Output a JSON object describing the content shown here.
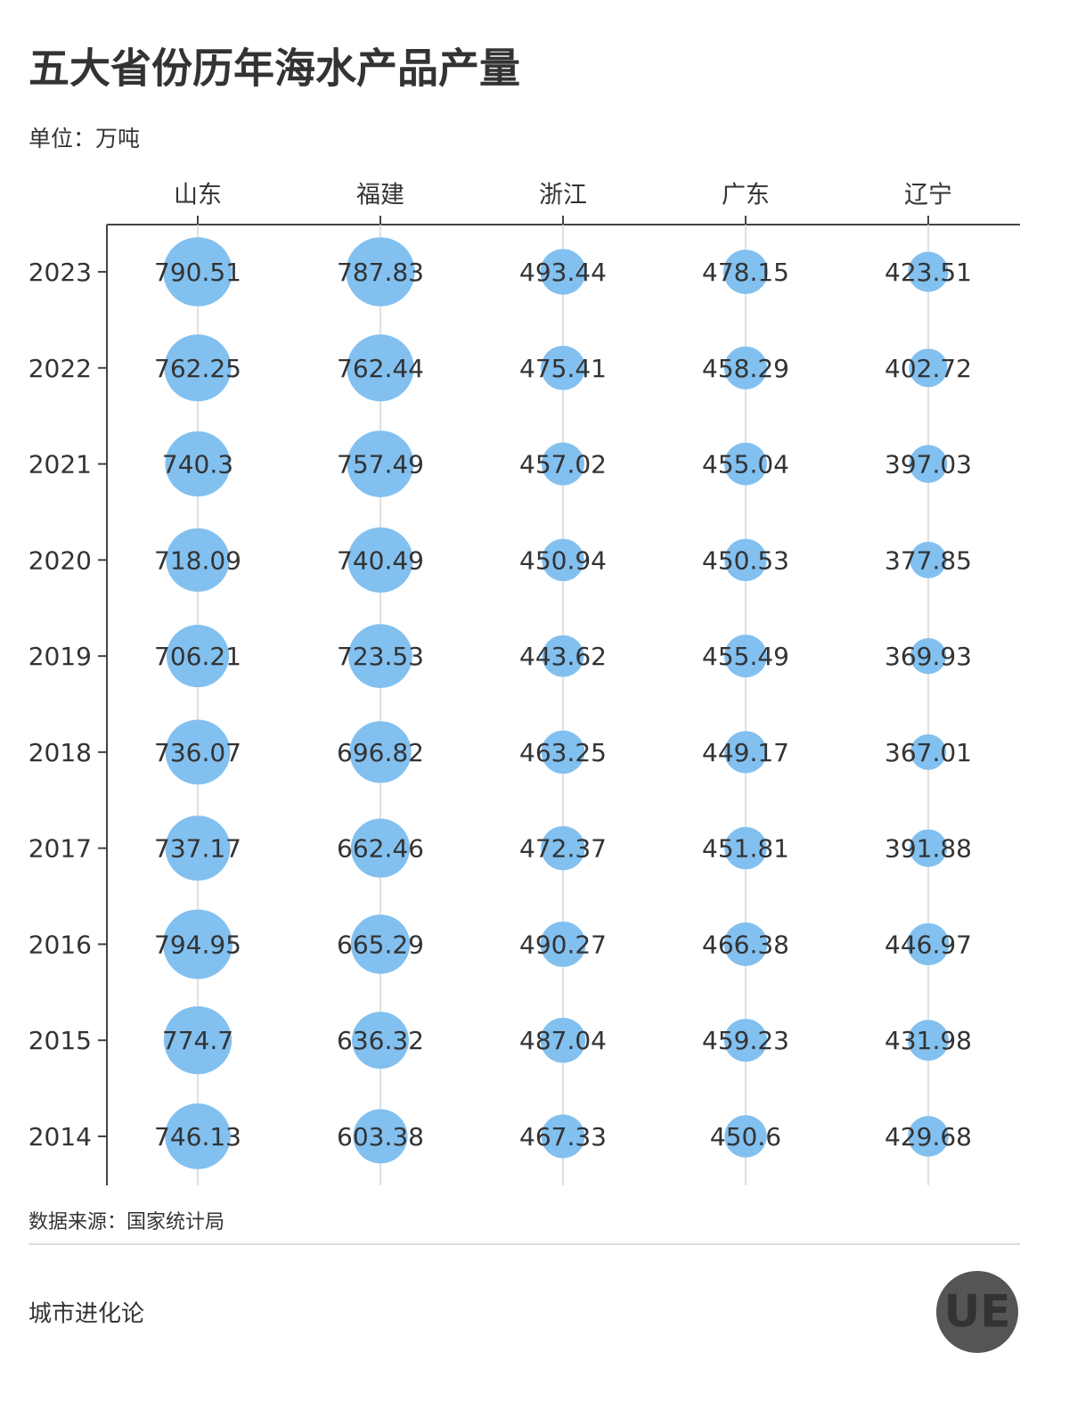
{
  "chart_data": {
    "type": "bubble-matrix",
    "title": "五大省份历年海水产品产量",
    "subtitle": "单位：万吨",
    "categories": [
      "2023",
      "2022",
      "2021",
      "2020",
      "2019",
      "2018",
      "2017",
      "2016",
      "2015",
      "2014"
    ],
    "series": [
      {
        "name": "山东",
        "color": "#82c0f0",
        "values": [
          790.51,
          762.25,
          740.3,
          718.09,
          706.21,
          736.07,
          737.17,
          794.95,
          774.7,
          746.13
        ]
      },
      {
        "name": "福建",
        "color": "#82c0f0",
        "values": [
          787.83,
          762.44,
          757.49,
          740.49,
          723.53,
          696.82,
          662.46,
          665.29,
          636.32,
          603.38
        ]
      },
      {
        "name": "浙江",
        "color": "#82c0f0",
        "values": [
          493.44,
          475.41,
          457.02,
          450.94,
          443.62,
          463.25,
          472.37,
          490.27,
          487.04,
          467.33
        ]
      },
      {
        "name": "广东",
        "color": "#82c0f0",
        "values": [
          478.15,
          458.29,
          455.04,
          450.53,
          455.49,
          449.17,
          451.81,
          466.38,
          459.23,
          450.6
        ]
      },
      {
        "name": "辽宁",
        "color": "#82c0f0",
        "values": [
          423.51,
          402.72,
          397.03,
          377.85,
          369.93,
          367.01,
          391.88,
          446.97,
          431.98,
          429.68
        ]
      }
    ],
    "source": "数据来源：国家统计局",
    "footer": "城市进化论",
    "logo": "UE"
  }
}
